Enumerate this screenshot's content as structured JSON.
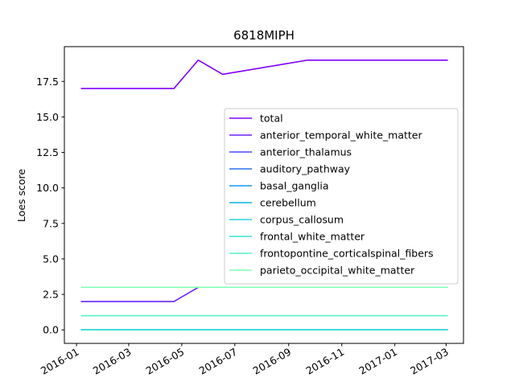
{
  "chart_data": {
    "type": "line",
    "title": "6818MIPH",
    "xlabel": "",
    "ylabel": "Loes score",
    "x": [
      "2016-01-06",
      "2016-04-22",
      "2016-05-20",
      "2016-06-17",
      "2016-09-23",
      "2017-03-03"
    ],
    "xlim": [
      "2015-12-18",
      "2017-03-21"
    ],
    "ylim": [
      -0.95,
      19.95
    ],
    "yticks": [
      "0.0",
      "2.5",
      "5.0",
      "7.5",
      "10.0",
      "12.5",
      "15.0",
      "17.5"
    ],
    "xticks": [
      "2016-01",
      "2016-03",
      "2016-05",
      "2016-07",
      "2016-09",
      "2016-11",
      "2017-01",
      "2017-03"
    ],
    "grid": false,
    "legend_position": "center-right",
    "series": [
      {
        "name": "total",
        "color": "#8000ff",
        "values": [
          17,
          17,
          19,
          18,
          19,
          19
        ]
      },
      {
        "name": "anterior_temporal_white_matter",
        "color": "#6a23fe",
        "values": [
          2,
          2,
          3,
          3,
          3,
          3
        ]
      },
      {
        "name": "anterior_thalamus",
        "color": "#4a4cfa",
        "values": [
          0,
          0,
          0,
          0,
          0,
          0
        ]
      },
      {
        "name": "auditory_pathway",
        "color": "#2c72f2",
        "values": [
          0,
          0,
          0,
          0,
          0,
          0
        ]
      },
      {
        "name": "basal_ganglia",
        "color": "#1996f3",
        "values": [
          0,
          0,
          0,
          0,
          0,
          0
        ]
      },
      {
        "name": "cerebellum",
        "color": "#06b4e8",
        "values": [
          0,
          0,
          0,
          0,
          0,
          0
        ]
      },
      {
        "name": "corpus_callosum",
        "color": "#2cd0df",
        "values": [
          0,
          0,
          0,
          0,
          0,
          0
        ]
      },
      {
        "name": "frontal_white_matter",
        "color": "#3ae4d3",
        "values": [
          0,
          0,
          0,
          0,
          0,
          0
        ]
      },
      {
        "name": "frontopontine_corticalspinal_fibers",
        "color": "#58f2c6",
        "values": [
          1,
          1,
          1,
          1,
          1,
          1
        ]
      },
      {
        "name": "parieto_occipital_white_matter",
        "color": "#80ffb4",
        "values": [
          3,
          3,
          3,
          3,
          3,
          3
        ]
      }
    ]
  }
}
